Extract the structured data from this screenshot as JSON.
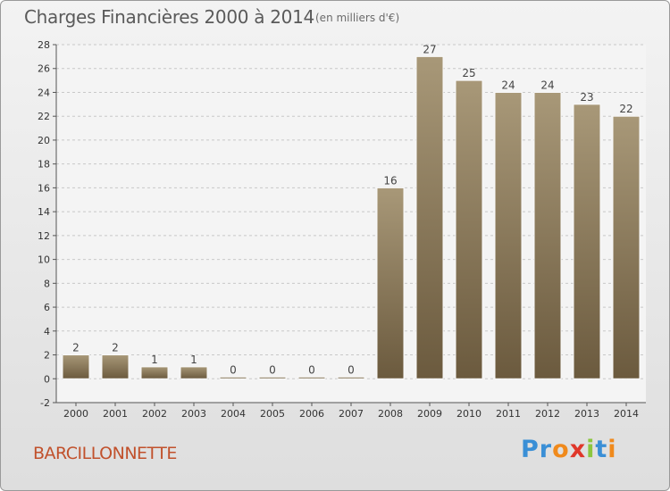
{
  "header": {
    "title": "Charges Financières 2000 à 2014",
    "subtitle": "(en milliers d'€)"
  },
  "place_name": "BARCILLONNETTE",
  "logo": {
    "text": "Proxiti",
    "letters": [
      {
        "ch": "P",
        "color": "#3a8fd6"
      },
      {
        "ch": "r",
        "color": "#3a8fd6"
      },
      {
        "ch": "o",
        "color": "#f08a1c"
      },
      {
        "ch": "x",
        "color": "#e0372a"
      },
      {
        "ch": "i",
        "color": "#8cc63f"
      },
      {
        "ch": "t",
        "color": "#3a8fd6"
      },
      {
        "ch": "i",
        "color": "#f08a1c"
      }
    ]
  },
  "colors": {
    "bar_top": "#a89878",
    "bar_bottom": "#6b5a3e",
    "plot_bg": "#f4f4f4",
    "grid": "#c8c8c8"
  },
  "chart_data": {
    "type": "bar",
    "categories": [
      "2000",
      "2001",
      "2002",
      "2003",
      "2004",
      "2005",
      "2006",
      "2007",
      "2008",
      "2009",
      "2010",
      "2011",
      "2012",
      "2013",
      "2014"
    ],
    "values": [
      2,
      2,
      1,
      1,
      0,
      0,
      0,
      0,
      16,
      27,
      25,
      24,
      24,
      23,
      22
    ],
    "value_labels": [
      "2",
      "2",
      "1",
      "1",
      "0",
      "0",
      "0",
      "0",
      "16",
      "27",
      "25",
      "24",
      "24",
      "23",
      "22"
    ],
    "ylim": [
      -2,
      28
    ],
    "yticks": [
      -2,
      0,
      2,
      4,
      6,
      8,
      10,
      12,
      14,
      16,
      18,
      20,
      22,
      24,
      26,
      28
    ],
    "grid": true,
    "title": "Charges Financières 2000 à 2014",
    "xlabel": "",
    "ylabel": ""
  }
}
